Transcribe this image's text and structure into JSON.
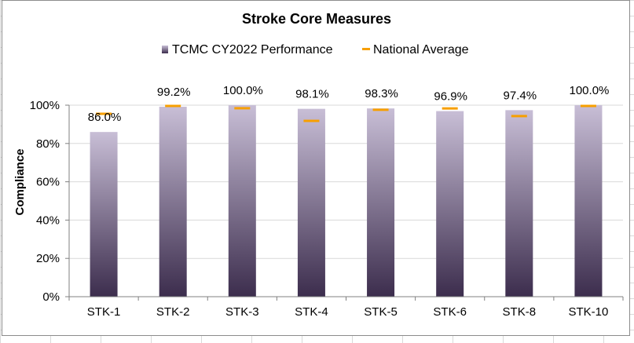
{
  "chart_data": {
    "type": "bar",
    "title": "Stroke Core Measures",
    "ylabel": "Compliance",
    "xlabel": "",
    "ylim": [
      0,
      100
    ],
    "yticks": [
      0,
      20,
      40,
      60,
      80,
      100
    ],
    "ytick_labels": [
      "0%",
      "20%",
      "40%",
      "60%",
      "80%",
      "100%"
    ],
    "grid": true,
    "legend_position": "top",
    "categories": [
      "STK-1",
      "STK-2",
      "STK-3",
      "STK-4",
      "STK-5",
      "STK-6",
      "STK-8",
      "STK-10"
    ],
    "series": [
      {
        "name": "TCMC CY2022 Performance",
        "type": "bar",
        "values": [
          86.0,
          99.2,
          100.0,
          98.1,
          98.3,
          96.9,
          97.4,
          100.0
        ],
        "labels": [
          "86.0%",
          "99.2%",
          "100.0%",
          "98.1%",
          "98.3%",
          "96.9%",
          "97.4%",
          "100.0%"
        ],
        "color_top": "#c8bed6",
        "color_bottom": "#3c2d4d"
      },
      {
        "name": "National Average",
        "type": "marker",
        "values": [
          95.5,
          99.6,
          98.4,
          91.8,
          97.6,
          98.3,
          94.3,
          99.6
        ],
        "color": "#f79f00"
      }
    ]
  }
}
